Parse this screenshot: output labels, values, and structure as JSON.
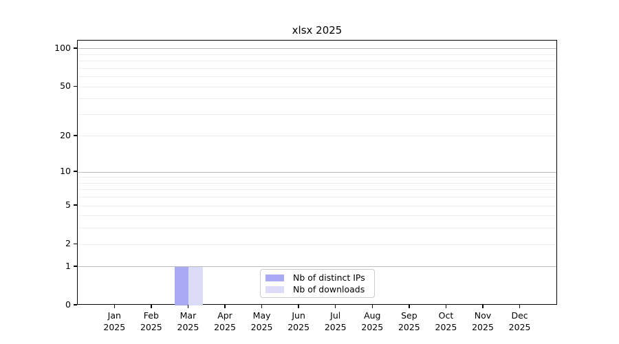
{
  "title": "xlsx 2025",
  "legend": {
    "items": [
      {
        "label": "Nb of distinct IPs",
        "color": "#aaaaf4"
      },
      {
        "label": "Nb of downloads",
        "color": "#dcdcf8"
      }
    ]
  },
  "axes": {
    "x_year": "2025",
    "x_months": [
      "Jan",
      "Feb",
      "Mar",
      "Apr",
      "May",
      "Jun",
      "Jul",
      "Aug",
      "Sep",
      "Oct",
      "Nov",
      "Dec"
    ],
    "y_tick_labels": [
      "0",
      "1",
      "2",
      "5",
      "10",
      "20",
      "50",
      "100"
    ]
  },
  "chart_data": {
    "type": "bar",
    "title": "xlsx 2025",
    "categories": [
      "Jan 2025",
      "Feb 2025",
      "Mar 2025",
      "Apr 2025",
      "May 2025",
      "Jun 2025",
      "Jul 2025",
      "Aug 2025",
      "Sep 2025",
      "Oct 2025",
      "Nov 2025",
      "Dec 2025"
    ],
    "series": [
      {
        "name": "Nb of distinct IPs",
        "color": "#aaaaf4",
        "values": [
          0,
          0,
          1,
          0,
          0,
          0,
          0,
          0,
          0,
          0,
          0,
          0
        ]
      },
      {
        "name": "Nb of downloads",
        "color": "#dcdcf8",
        "values": [
          0,
          0,
          1,
          0,
          0,
          0,
          0,
          0,
          0,
          0,
          0,
          0
        ]
      }
    ],
    "xlabel": "",
    "ylabel": "",
    "yscale": "log1p",
    "ylim": [
      0,
      113
    ],
    "y_ticks": [
      0,
      1,
      2,
      5,
      10,
      20,
      50,
      100
    ],
    "y_major_gridlines": [
      1,
      10,
      100
    ],
    "y_minor_gridlines": [
      3,
      4,
      6,
      7,
      8,
      9,
      30,
      40,
      60,
      70,
      80,
      90
    ],
    "grid": "horizontal",
    "legend_position": "lower center inside",
    "colors": {
      "major_grid": "#bbbbbb",
      "minor_grid": "#ececec",
      "spine": "#000000",
      "background": "#ffffff",
      "text": "#000000"
    }
  }
}
